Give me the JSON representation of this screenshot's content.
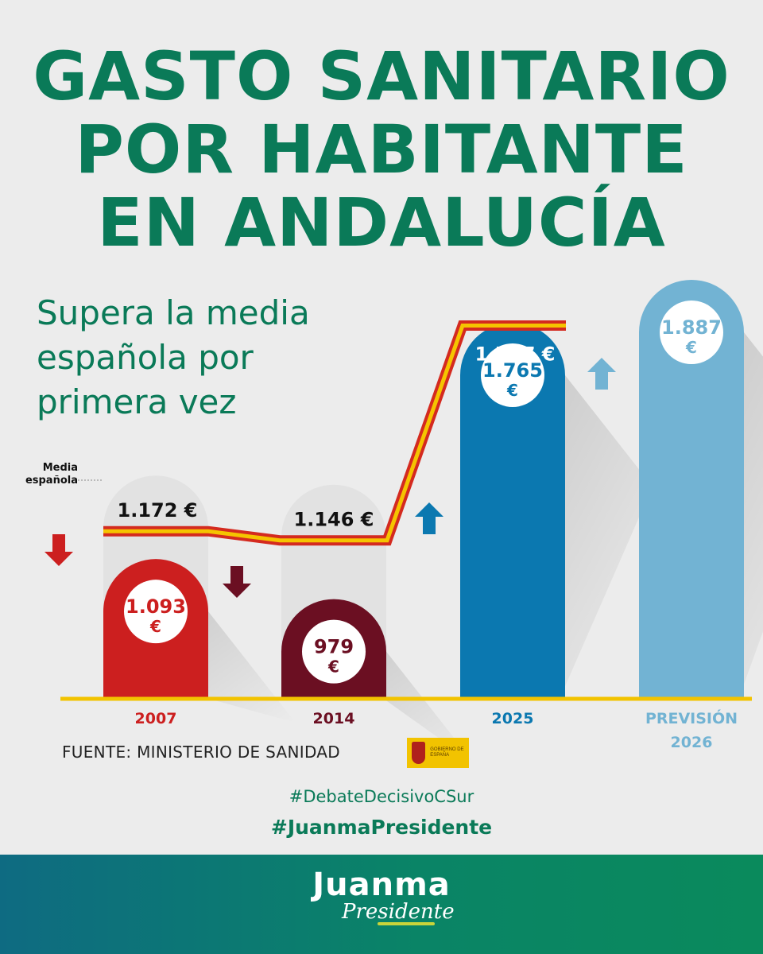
{
  "title_lines": [
    "GASTO SANITARIO",
    "POR HABITANTE",
    "EN ANDALUCÍA"
  ],
  "subtitle": "Supera la media española por primera vez",
  "media_label_line1": "Media",
  "media_label_line2": "española",
  "source": "FUENTE: MINISTERIO DE SANIDAD",
  "gov_logo_text": "GOBIERNO DE ESPAÑA",
  "hashtags": [
    "#DebateDecisivoCSur",
    "#JuanmaPresidente"
  ],
  "brand": {
    "name": "Juanma",
    "sub": "Presidente"
  },
  "colors": {
    "green": "#0a7a58",
    "bar2007": "#cc1f1f",
    "bar2014": "#6b0f22",
    "bar2025": "#0b78b0",
    "bar2026": "#72b3d3",
    "flag_red": "#d42a1f",
    "flag_yellow": "#f5c400"
  },
  "chart_data": {
    "type": "bar",
    "categories": [
      "2007",
      "2014",
      "2025",
      "PREVISIÓN 2026"
    ],
    "category_label_lines": [
      [
        "2007"
      ],
      [
        "2014"
      ],
      [
        "2025"
      ],
      [
        "PREVISIÓN",
        "2026"
      ]
    ],
    "series": [
      {
        "name": "",
        "values": [
          1093,
          979,
          1765,
          1887
        ],
        "value_labels": [
          "1.093",
          "979",
          "1.765",
          "1.887"
        ],
        "unit_label": "€"
      },
      {
        "name": "Media española",
        "values": [
          1172,
          1146,
          1757,
          null
        ],
        "value_labels": [
          "1.172 €",
          "1.146 €",
          "1.757 €",
          null
        ]
      }
    ],
    "trend_arrows": [
      "down",
      "down",
      "up",
      "up"
    ]
  }
}
